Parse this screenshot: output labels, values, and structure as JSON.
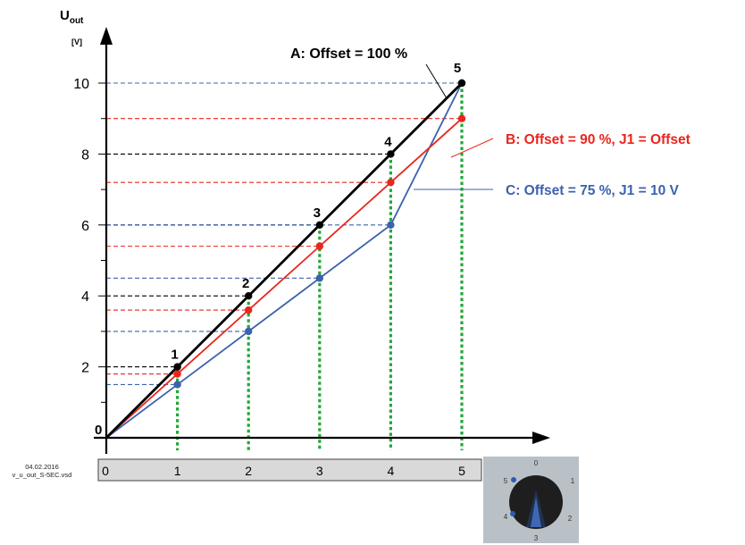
{
  "chart_data": {
    "type": "line",
    "y_axis": {
      "symbol": "U",
      "subscript": "out",
      "unit": "[V]",
      "ylim": [
        0,
        10
      ],
      "ticks": [
        2,
        4,
        6,
        8,
        10
      ]
    },
    "x_axis": {
      "xlim": [
        0,
        5
      ],
      "ticks": [
        0,
        1,
        2,
        3,
        4,
        5
      ]
    },
    "series": [
      {
        "name": "A: Offset = 100 %",
        "color": "#000000",
        "x": [
          0,
          1,
          2,
          3,
          4,
          5
        ],
        "y": [
          0,
          2,
          4,
          6,
          8,
          10
        ]
      },
      {
        "name": "B: Offset = 90 %, J1 = Offset",
        "color": "#e8261e",
        "x": [
          0,
          1,
          2,
          3,
          4,
          5
        ],
        "y": [
          0,
          1.8,
          3.6,
          5.4,
          7.2,
          9.0
        ]
      },
      {
        "name": "C: Offset = 75 %, J1 = 10 V",
        "color": "#3c62ad",
        "x": [
          0,
          1,
          2,
          3,
          4,
          5
        ],
        "y": [
          0,
          1.5,
          3.0,
          4.5,
          6.0,
          10.0
        ]
      }
    ],
    "point_labels": [
      "0",
      "1",
      "2",
      "3",
      "4",
      "5"
    ],
    "grid": false,
    "legend": "right"
  },
  "colors": {
    "series_a": "#000000",
    "series_b": "#e8261e",
    "series_c": "#3c62ad",
    "drop_lines": "#22a838",
    "axis_bar": "#d9d9d9"
  },
  "footer": {
    "date": "04.02.2016",
    "file": "v_u_out_S-5EC.vsd"
  },
  "dial": {
    "labels": [
      "0",
      "1",
      "2",
      "3",
      "4",
      "5"
    ]
  }
}
